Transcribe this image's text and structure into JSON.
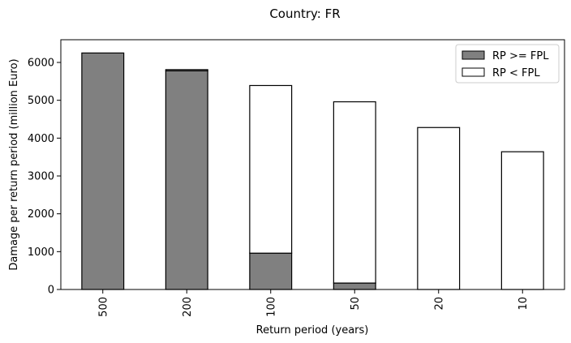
{
  "chart_data": {
    "type": "bar",
    "stacked": true,
    "title": "Country: FR",
    "xlabel": "Return period (years)",
    "ylabel": "Damage per return period (million Euro)",
    "categories": [
      "500",
      "200",
      "100",
      "50",
      "20",
      "10"
    ],
    "series": [
      {
        "name": "RP >= FPL",
        "color": "#808080",
        "values": [
          6250,
          5780,
          960,
          170,
          0,
          0
        ]
      },
      {
        "name": "RP < FPL",
        "color": "#ffffff",
        "values": [
          0,
          30,
          4430,
          4790,
          4280,
          3640
        ]
      }
    ],
    "ylim": [
      0,
      6600
    ],
    "yticks": [
      0,
      1000,
      2000,
      3000,
      4000,
      5000,
      6000
    ],
    "legend_position": "top-right",
    "grid": false
  }
}
